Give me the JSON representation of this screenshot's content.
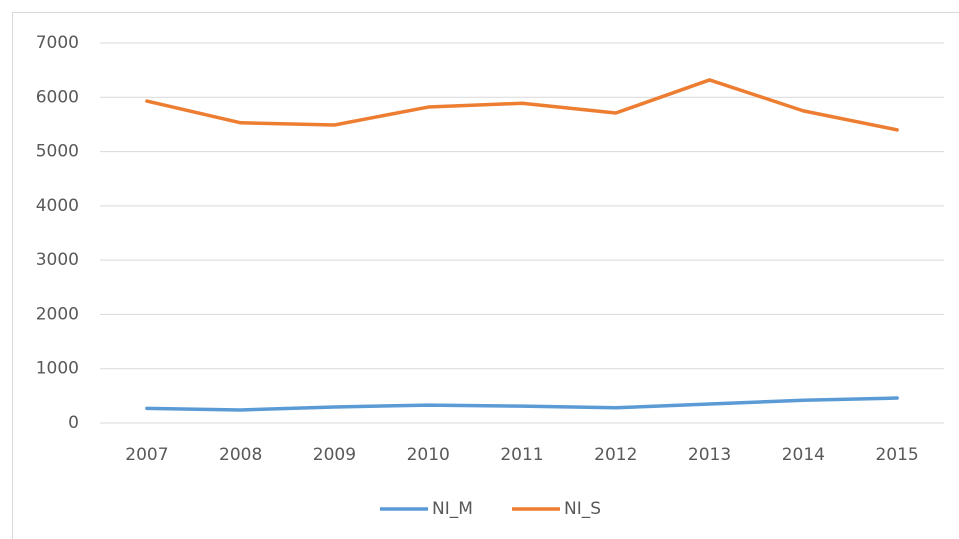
{
  "chart_data": {
    "type": "line",
    "categories": [
      "2007",
      "2008",
      "2009",
      "2010",
      "2011",
      "2012",
      "2013",
      "2014",
      "2015"
    ],
    "series": [
      {
        "name": "NI_M",
        "color": "#5b9bd5",
        "values": [
          270,
          240,
          295,
          330,
          310,
          280,
          350,
          420,
          460
        ]
      },
      {
        "name": "NI_S",
        "color": "#ed7d31",
        "values": [
          5930,
          5530,
          5490,
          5820,
          5890,
          5710,
          6320,
          5750,
          5400
        ]
      }
    ],
    "ylim": [
      0,
      7000
    ],
    "yticks": [
      0,
      1000,
      2000,
      3000,
      4000,
      5000,
      6000,
      7000
    ],
    "grid": true,
    "legend": "bottom"
  }
}
